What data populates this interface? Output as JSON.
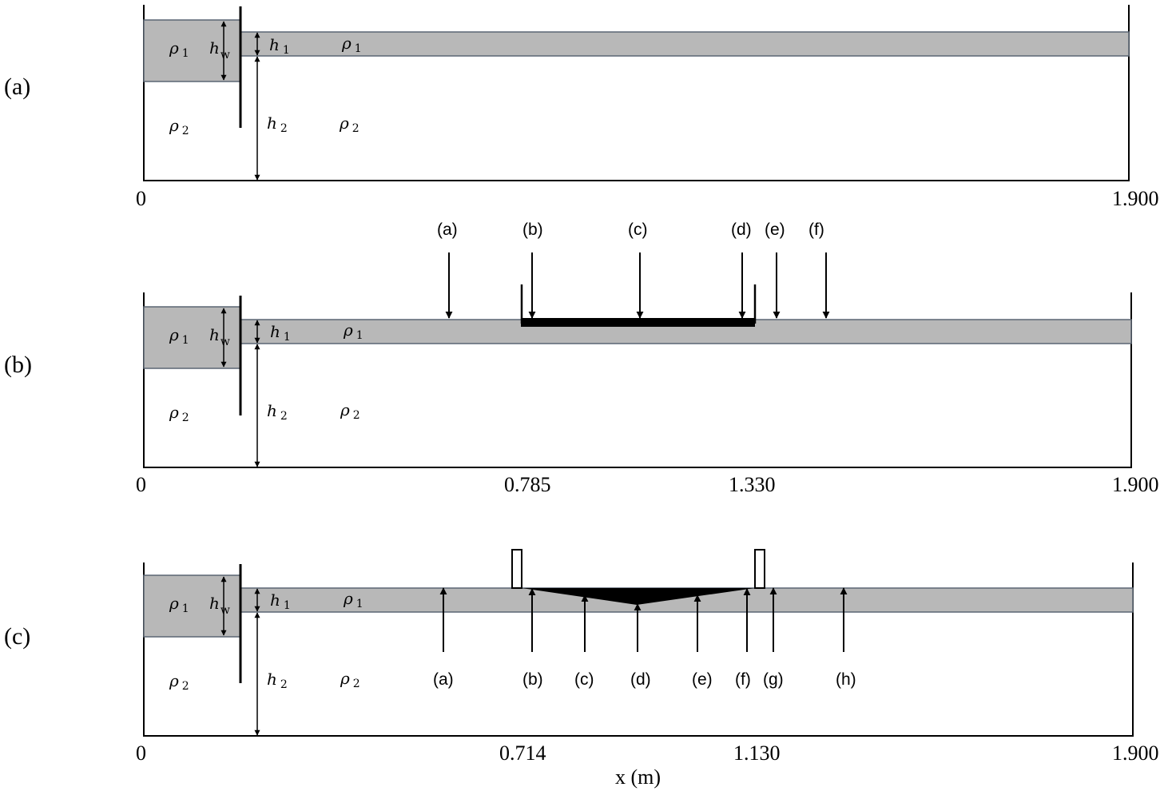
{
  "panels": [
    {
      "label": "(a)",
      "ticks": {
        "start": "0",
        "end": "1.900"
      },
      "symbols": {
        "rho1_left": {
          "base": "ρ",
          "sub": "1"
        },
        "hw": {
          "base": "h",
          "sub": "w"
        },
        "h1": {
          "base": "h",
          "sub": "1"
        },
        "rho1_right": {
          "base": "ρ",
          "sub": "1"
        },
        "rho2_left": {
          "base": "ρ",
          "sub": "2"
        },
        "h2": {
          "base": "h",
          "sub": "2"
        },
        "rho2_right": {
          "base": "ρ",
          "sub": "2"
        }
      }
    },
    {
      "label": "(b)",
      "ticks": {
        "start": "0",
        "mid1": "0.785",
        "mid2": "1.330",
        "end": "1.900"
      },
      "symbols": {
        "rho1_left": {
          "base": "ρ",
          "sub": "1"
        },
        "hw": {
          "base": "h",
          "sub": "w"
        },
        "h1": {
          "base": "h",
          "sub": "1"
        },
        "rho1_right": {
          "base": "ρ",
          "sub": "1"
        },
        "rho2_left": {
          "base": "ρ",
          "sub": "2"
        },
        "h2": {
          "base": "h",
          "sub": "2"
        },
        "rho2_right": {
          "base": "ρ",
          "sub": "2"
        }
      },
      "probes": [
        "(a)",
        "(b)",
        "(c)",
        "(d)",
        "(e)",
        "(f)"
      ]
    },
    {
      "label": "(c)",
      "ticks": {
        "start": "0",
        "mid1": "0.714",
        "mid2": "1.130",
        "end": "1.900"
      },
      "symbols": {
        "rho1_left": {
          "base": "ρ",
          "sub": "1"
        },
        "hw": {
          "base": "h",
          "sub": "w"
        },
        "h1": {
          "base": "h",
          "sub": "1"
        },
        "rho1_right": {
          "base": "ρ",
          "sub": "1"
        },
        "rho2_left": {
          "base": "ρ",
          "sub": "2"
        },
        "h2": {
          "base": "h",
          "sub": "2"
        },
        "rho2_right": {
          "base": "ρ",
          "sub": "2"
        }
      },
      "probes": [
        "(a)",
        "(b)",
        "(c)",
        "(d)",
        "(e)",
        "(f)",
        "(g)",
        "(h)"
      ]
    }
  ],
  "axis_title": "x (m)",
  "colors": {
    "upper_layer": "#b8b8b8",
    "outline": "#5a6573",
    "black": "#000000"
  }
}
